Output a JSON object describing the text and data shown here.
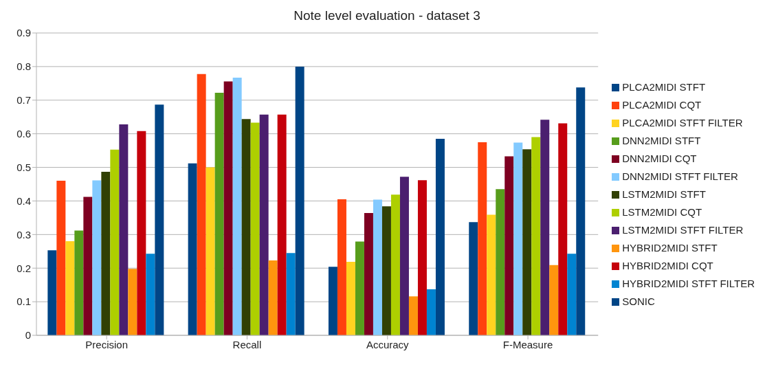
{
  "chart_data": {
    "type": "bar",
    "title": "Note level evaluation - dataset 3",
    "categories": [
      "Precision",
      "Recall",
      "Accuracy",
      "F-Measure"
    ],
    "series": [
      {
        "name": "PLCA2MIDI STFT",
        "color": "#004586",
        "values": [
          0.253,
          0.512,
          0.204,
          0.337
        ]
      },
      {
        "name": "PLCA2MIDI CQT",
        "color": "#ff420e",
        "values": [
          0.46,
          0.778,
          0.405,
          0.575
        ]
      },
      {
        "name": "PLCA2MIDI STFT FILTER",
        "color": "#ffd320",
        "values": [
          0.28,
          0.5,
          0.219,
          0.359
        ]
      },
      {
        "name": "DNN2MIDI STFT",
        "color": "#579d1c",
        "values": [
          0.312,
          0.722,
          0.279,
          0.435
        ]
      },
      {
        "name": "DNN2MIDI CQT",
        "color": "#7e0021",
        "values": [
          0.412,
          0.756,
          0.364,
          0.533
        ]
      },
      {
        "name": "DNN2MIDI STFT FILTER",
        "color": "#83caff",
        "values": [
          0.461,
          0.767,
          0.404,
          0.574
        ]
      },
      {
        "name": "LSTM2MIDI STFT",
        "color": "#314004",
        "values": [
          0.487,
          0.644,
          0.384,
          0.554
        ]
      },
      {
        "name": "LSTM2MIDI CQT",
        "color": "#aecf00",
        "values": [
          0.553,
          0.633,
          0.419,
          0.59
        ]
      },
      {
        "name": "LSTM2MIDI STFT FILTER",
        "color": "#4b1f6f",
        "values": [
          0.628,
          0.657,
          0.472,
          0.642
        ]
      },
      {
        "name": "HYBRID2MIDI STFT",
        "color": "#ff950e",
        "values": [
          0.198,
          0.223,
          0.116,
          0.209
        ]
      },
      {
        "name": "HYBRID2MIDI CQT",
        "color": "#c5000b",
        "values": [
          0.608,
          0.657,
          0.462,
          0.631
        ]
      },
      {
        "name": "HYBRID2MIDI STFT FILTER",
        "color": "#0084d1",
        "values": [
          0.243,
          0.245,
          0.137,
          0.243
        ]
      },
      {
        "name": "SONIC",
        "color": "#004586",
        "values": [
          0.687,
          0.8,
          0.585,
          0.738
        ]
      }
    ],
    "ylim": [
      0,
      0.9
    ],
    "yticks": [
      0,
      0.1,
      0.2,
      0.3,
      0.4,
      0.5,
      0.6,
      0.7,
      0.8,
      0.9
    ],
    "grid": "y",
    "legend": "right"
  }
}
